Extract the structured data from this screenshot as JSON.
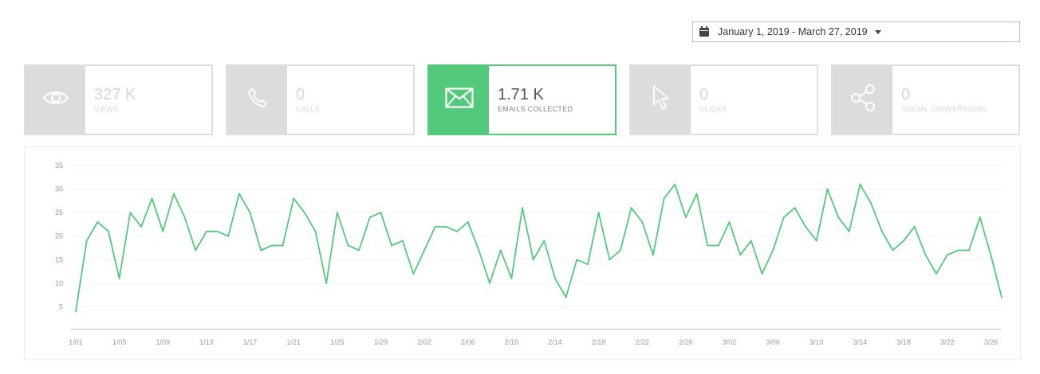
{
  "date_range": {
    "label": "January 1, 2019 - March 27, 2019"
  },
  "icons": {
    "date": "calendar-icon",
    "views": "eye-icon",
    "calls": "phone-icon",
    "emails": "envelope-icon",
    "clicks": "cursor-icon",
    "social": "share-icon"
  },
  "colors": {
    "accent": "#53c97b",
    "inactive_icon_bg": "#dcdcdc",
    "line": "#53c97b"
  },
  "metrics": [
    {
      "value": "327 K",
      "label": "VIEWS",
      "active": false
    },
    {
      "value": "0",
      "label": "CALLS",
      "active": false
    },
    {
      "value": "1.71 K",
      "label": "EMAILS COLLECTED",
      "active": true
    },
    {
      "value": "0",
      "label": "CLICKS",
      "active": false
    },
    {
      "value": "0",
      "label": "SOCIAL CONVERSIONS",
      "active": false
    }
  ],
  "chart_data": {
    "type": "line",
    "x_tick_labels": [
      "1/01",
      "1/05",
      "1/09",
      "1/13",
      "1/17",
      "1/21",
      "1/25",
      "1/29",
      "2/02",
      "2/06",
      "2/10",
      "2/14",
      "2/18",
      "2/22",
      "2/26",
      "3/02",
      "3/06",
      "3/10",
      "3/14",
      "3/18",
      "3/22",
      "3/26"
    ],
    "y_tick_labels": [
      "5",
      "10",
      "15",
      "20",
      "25",
      "30",
      "35"
    ],
    "ylim": [
      0,
      35
    ],
    "grid": true,
    "series": [
      {
        "values": [
          4,
          19,
          23,
          21,
          11,
          25,
          22,
          28,
          21,
          29,
          24,
          17,
          21,
          21,
          20,
          29,
          25,
          17,
          18,
          18,
          28,
          25,
          21,
          10,
          25,
          18,
          17,
          24,
          25,
          18,
          19,
          12,
          17,
          22,
          22,
          21,
          23,
          17,
          10,
          17,
          11,
          26,
          15,
          19,
          11,
          7,
          15,
          14,
          25,
          15,
          17,
          26,
          23,
          16,
          28,
          31,
          24,
          29,
          18,
          18,
          23,
          16,
          19,
          12,
          17,
          24,
          26,
          22,
          19,
          30,
          24,
          21,
          31,
          27,
          21,
          17,
          19,
          22,
          16,
          12,
          16,
          17,
          17,
          24,
          16,
          7
        ]
      }
    ]
  }
}
